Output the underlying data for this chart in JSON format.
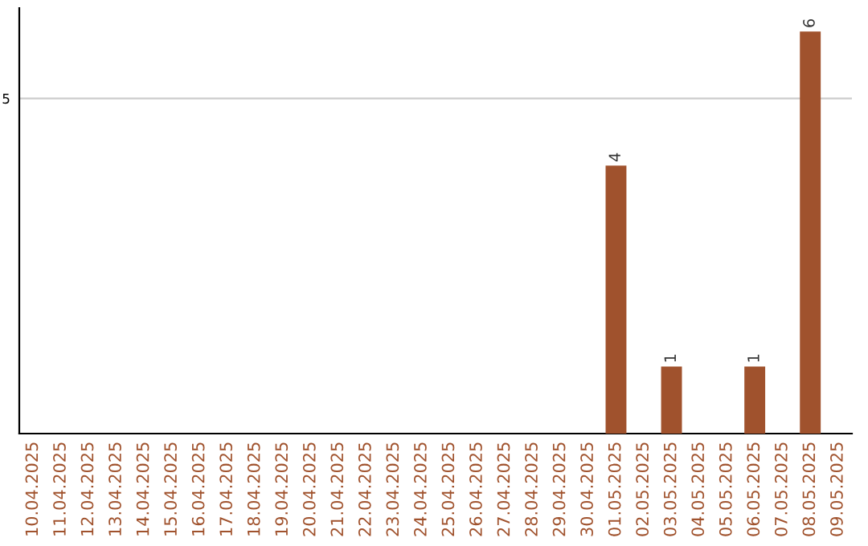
{
  "chart_data": {
    "type": "bar",
    "categories": [
      "10.04.2025",
      "11.04.2025",
      "12.04.2025",
      "13.04.2025",
      "14.04.2025",
      "15.04.2025",
      "16.04.2025",
      "17.04.2025",
      "18.04.2025",
      "19.04.2025",
      "20.04.2025",
      "21.04.2025",
      "22.04.2025",
      "23.04.2025",
      "24.04.2025",
      "25.04.2025",
      "26.04.2025",
      "27.04.2025",
      "28.04.2025",
      "29.04.2025",
      "30.04.2025",
      "01.05.2025",
      "02.05.2025",
      "03.05.2025",
      "04.05.2025",
      "05.05.2025",
      "06.05.2025",
      "07.05.2025",
      "08.05.2025",
      "09.05.2025"
    ],
    "values": [
      null,
      null,
      null,
      null,
      null,
      null,
      null,
      null,
      null,
      null,
      null,
      null,
      null,
      null,
      null,
      null,
      null,
      null,
      null,
      null,
      null,
      4,
      null,
      1,
      null,
      null,
      1,
      null,
      6,
      null
    ],
    "data_labels": true,
    "color": "#a0522d",
    "ylim": [
      0,
      6.35
    ],
    "yticks": [
      5
    ],
    "grid": "y",
    "legend": false
  }
}
